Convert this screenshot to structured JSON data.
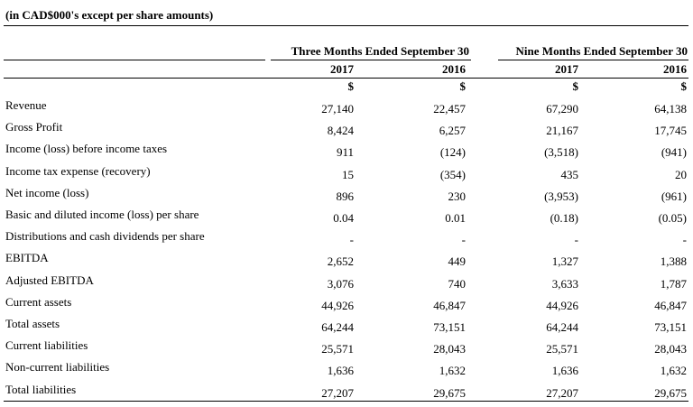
{
  "caption": "(in CAD$000's except per share amounts)",
  "groups": [
    {
      "label": "Three Months Ended September 30"
    },
    {
      "label": "Nine Months Ended September 30"
    }
  ],
  "years": [
    "2017",
    "2016",
    "2017",
    "2016"
  ],
  "currency": [
    "$",
    "$",
    "$",
    "$"
  ],
  "rows": [
    {
      "label": "Revenue",
      "values": [
        "27,140",
        "22,457",
        "67,290",
        "64,138"
      ]
    },
    {
      "label": "Gross Profit",
      "values": [
        "8,424",
        "6,257",
        "21,167",
        "17,745"
      ]
    },
    {
      "label": "Income (loss) before income taxes",
      "values": [
        "911",
        "(124)",
        "(3,518)",
        "(941)"
      ]
    },
    {
      "label": "Income tax expense (recovery)",
      "values": [
        "15",
        "(354)",
        "435",
        "20"
      ]
    },
    {
      "label": "Net income (loss)",
      "values": [
        "896",
        "230",
        "(3,953)",
        "(961)"
      ]
    },
    {
      "label": "Basic and diluted income (loss) per share",
      "values": [
        "0.04",
        "0.01",
        "(0.18)",
        "(0.05)"
      ]
    },
    {
      "label": "Distributions and cash dividends per share",
      "values": [
        "-",
        "-",
        "-",
        "-"
      ]
    },
    {
      "label": "EBITDA",
      "values": [
        "2,652",
        "449",
        "1,327",
        "1,388"
      ]
    },
    {
      "label": "Adjusted EBITDA",
      "values": [
        "3,076",
        "740",
        "3,633",
        "1,787"
      ]
    },
    {
      "label": "Current assets",
      "values": [
        "44,926",
        "46,847",
        "44,926",
        "46,847"
      ]
    },
    {
      "label": "Total assets",
      "values": [
        "64,244",
        "73,151",
        "64,244",
        "73,151"
      ]
    },
    {
      "label": "Current liabilities",
      "values": [
        "25,571",
        "28,043",
        "25,571",
        "28,043"
      ]
    },
    {
      "label": "Non-current liabilities",
      "values": [
        "1,636",
        "1,632",
        "1,636",
        "1,632"
      ]
    },
    {
      "label": "Total liabilities",
      "values": [
        "27,207",
        "29,675",
        "27,207",
        "29,675"
      ]
    }
  ]
}
